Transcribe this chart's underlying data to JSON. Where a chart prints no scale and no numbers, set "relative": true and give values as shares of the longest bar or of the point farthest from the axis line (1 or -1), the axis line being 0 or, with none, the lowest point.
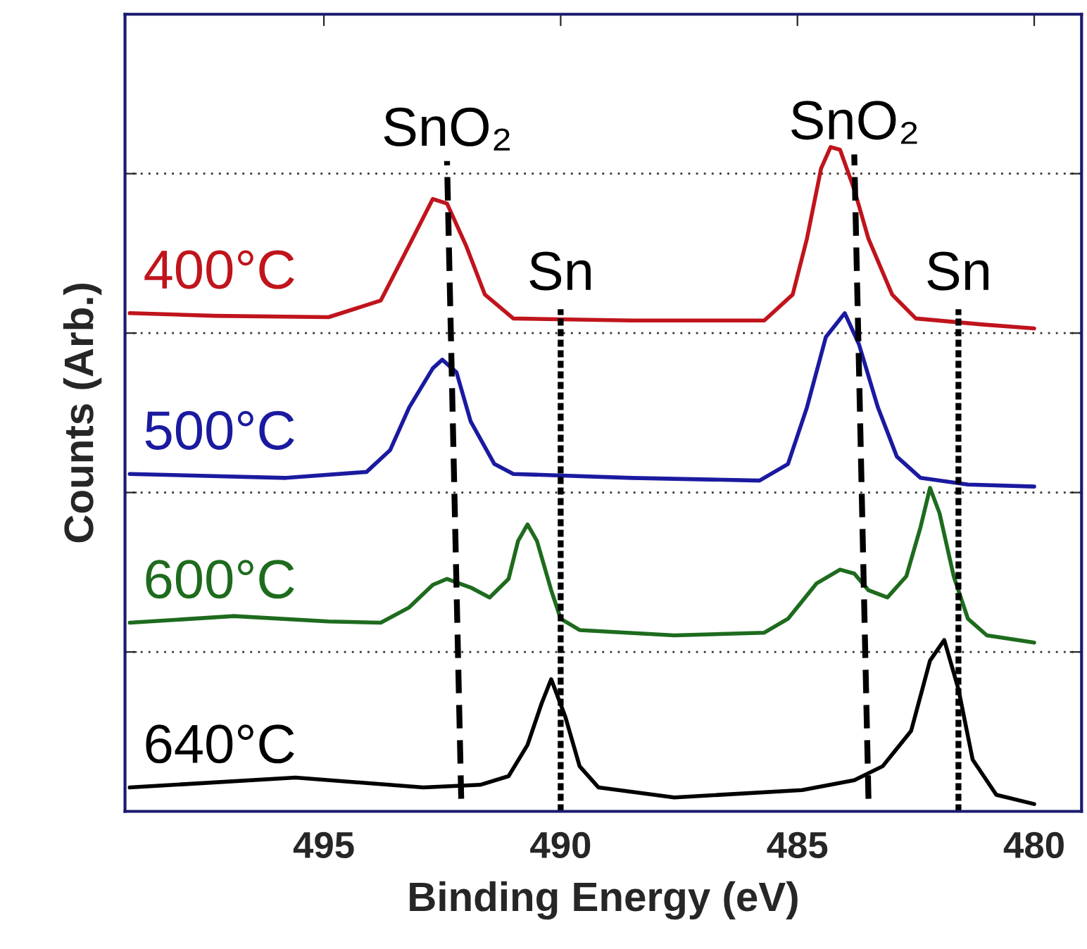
{
  "chart_data": {
    "type": "line",
    "relative": true,
    "xlabel": "Binding Energy (eV)",
    "ylabel": "Counts (Arb.)",
    "xlim": [
      499.2,
      479
    ],
    "xticks": [
      495,
      490,
      485,
      480
    ],
    "grid": "y",
    "legend": false,
    "series": [
      {
        "name": "400°C",
        "color": "#c0141c",
        "line_style": "solid",
        "x": [
          499.1,
          497.3,
          494.9,
          493.8,
          493.2,
          492.7,
          492.4,
          492.0,
          491.6,
          491.0,
          488.5,
          485.7,
          485.1,
          484.8,
          484.5,
          484.3,
          484.1,
          483.8,
          483.5,
          483.0,
          482.5,
          481.1,
          480.0
        ],
        "values": [
          0.75,
          0.746,
          0.744,
          0.769,
          0.852,
          0.922,
          0.915,
          0.852,
          0.778,
          0.742,
          0.739,
          0.739,
          0.778,
          0.862,
          0.968,
          1.0,
          0.996,
          0.936,
          0.862,
          0.778,
          0.742,
          0.733,
          0.727
        ]
      },
      {
        "name": "500°C",
        "color": "#1a1aa0",
        "line_style": "solid",
        "x": [
          499.1,
          495.8,
          494.1,
          493.6,
          493.2,
          492.7,
          492.5,
          492.2,
          491.9,
          491.4,
          491.0,
          488.5,
          485.8,
          485.2,
          484.8,
          484.4,
          484.0,
          483.7,
          483.3,
          482.9,
          482.4,
          481.4,
          480.0
        ],
        "values": [
          0.508,
          0.502,
          0.511,
          0.544,
          0.608,
          0.667,
          0.68,
          0.661,
          0.587,
          0.523,
          0.508,
          0.502,
          0.498,
          0.523,
          0.608,
          0.714,
          0.75,
          0.703,
          0.608,
          0.534,
          0.502,
          0.492,
          0.489
        ]
      },
      {
        "name": "600°C",
        "color": "#1e6b1e",
        "line_style": "solid",
        "x": [
          499.1,
          496.9,
          494.9,
          493.8,
          493.2,
          492.7,
          492.4,
          491.9,
          491.5,
          491.1,
          490.9,
          490.7,
          490.5,
          490.2,
          490.0,
          489.6,
          487.6,
          485.7,
          485.2,
          484.6,
          484.1,
          483.8,
          483.5,
          483.1,
          482.7,
          482.4,
          482.2,
          482.0,
          481.7,
          481.4,
          481.0,
          480.0
        ],
        "values": [
          0.284,
          0.294,
          0.286,
          0.284,
          0.307,
          0.341,
          0.35,
          0.337,
          0.322,
          0.35,
          0.407,
          0.432,
          0.407,
          0.333,
          0.29,
          0.273,
          0.265,
          0.269,
          0.29,
          0.343,
          0.364,
          0.358,
          0.333,
          0.322,
          0.354,
          0.428,
          0.487,
          0.449,
          0.354,
          0.29,
          0.265,
          0.254
        ]
      },
      {
        "name": "640°C",
        "color": "#000000",
        "line_style": "solid",
        "x": [
          499.1,
          495.6,
          492.9,
          491.7,
          491.1,
          490.7,
          490.4,
          490.2,
          489.9,
          489.6,
          489.2,
          487.6,
          484.9,
          483.8,
          483.2,
          482.6,
          482.2,
          481.9,
          481.6,
          481.3,
          480.8,
          480.0
        ],
        "values": [
          0.036,
          0.051,
          0.036,
          0.04,
          0.053,
          0.1,
          0.163,
          0.199,
          0.142,
          0.068,
          0.036,
          0.021,
          0.032,
          0.047,
          0.068,
          0.121,
          0.227,
          0.258,
          0.184,
          0.078,
          0.025,
          0.011
        ]
      },
      {
        "color": "#000000",
        "line_style": "dashed",
        "x": [
          492.1,
          492.4
        ],
        "values": [
          0.019,
          0.979
        ]
      },
      {
        "color": "#000000",
        "line_style": "dashed",
        "x": [
          483.5,
          483.8
        ],
        "values": [
          0.019,
          0.989
        ]
      }
    ],
    "ref_lines": [
      {
        "axis": "x",
        "value": 490.0,
        "label": "Sn",
        "color": "#000000",
        "line_style": "dotted"
      },
      {
        "axis": "x",
        "value": 481.6,
        "label": "Sn",
        "color": "#000000",
        "line_style": "dotted"
      }
    ],
    "annotations": [
      {
        "text": "SnO₂",
        "x": 492.4,
        "y": 0.979
      },
      {
        "text": "SnO₂",
        "x": 483.8,
        "y": 0.989
      }
    ]
  }
}
